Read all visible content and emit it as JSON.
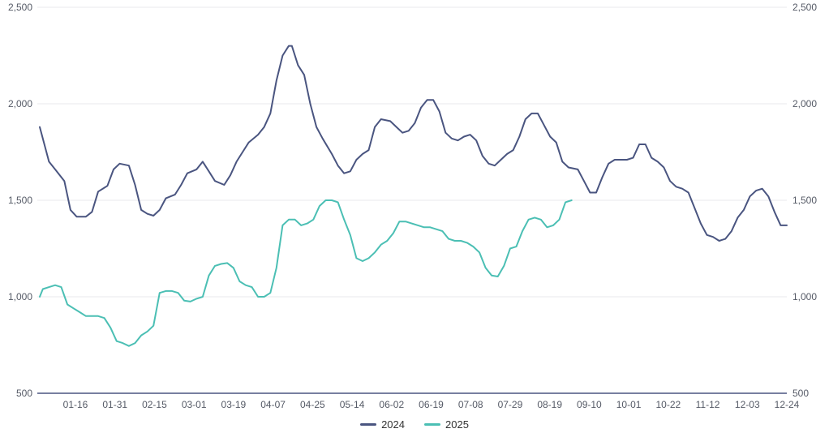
{
  "chart_data": {
    "type": "line",
    "title": "",
    "xlabel": "",
    "ylabel": "",
    "ylim": [
      500,
      2500
    ],
    "y_ticks": [
      500,
      1000,
      1500,
      2000,
      2500
    ],
    "y_tick_labels": [
      "500",
      "1,000",
      "1,500",
      "2,000",
      "2,500"
    ],
    "x_tick_labels": [
      "01-16",
      "01-31",
      "02-15",
      "03-01",
      "03-19",
      "04-07",
      "04-25",
      "05-14",
      "06-02",
      "06-19",
      "07-08",
      "07-29",
      "08-19",
      "09-10",
      "10-01",
      "10-22",
      "11-12",
      "12-03",
      "12-24"
    ],
    "x_axis": "trading days of the year (index 0–243)",
    "grid": true,
    "legend_position": "bottom",
    "series": [
      {
        "name": "2024",
        "color": "#4a5580",
        "points": [
          [
            0,
            1880
          ],
          [
            3,
            1700
          ],
          [
            5,
            1660
          ],
          [
            8,
            1600
          ],
          [
            10,
            1450
          ],
          [
            12,
            1415
          ],
          [
            15,
            1415
          ],
          [
            17,
            1440
          ],
          [
            19,
            1545
          ],
          [
            22,
            1575
          ],
          [
            24,
            1660
          ],
          [
            26,
            1690
          ],
          [
            29,
            1680
          ],
          [
            31,
            1580
          ],
          [
            33,
            1450
          ],
          [
            35,
            1430
          ],
          [
            37,
            1420
          ],
          [
            39,
            1450
          ],
          [
            41,
            1510
          ],
          [
            44,
            1530
          ],
          [
            46,
            1580
          ],
          [
            48,
            1640
          ],
          [
            51,
            1660
          ],
          [
            53,
            1700
          ],
          [
            55,
            1650
          ],
          [
            57,
            1600
          ],
          [
            60,
            1580
          ],
          [
            62,
            1630
          ],
          [
            64,
            1700
          ],
          [
            66,
            1750
          ],
          [
            68,
            1800
          ],
          [
            71,
            1840
          ],
          [
            73,
            1880
          ],
          [
            75,
            1950
          ],
          [
            77,
            2120
          ],
          [
            79,
            2250
          ],
          [
            81,
            2300
          ],
          [
            82,
            2300
          ],
          [
            84,
            2200
          ],
          [
            86,
            2150
          ],
          [
            88,
            2000
          ],
          [
            90,
            1880
          ],
          [
            92,
            1820
          ],
          [
            95,
            1740
          ],
          [
            97,
            1680
          ],
          [
            99,
            1640
          ],
          [
            101,
            1650
          ],
          [
            103,
            1710
          ],
          [
            105,
            1740
          ],
          [
            107,
            1760
          ],
          [
            109,
            1880
          ],
          [
            111,
            1920
          ],
          [
            114,
            1910
          ],
          [
            116,
            1880
          ],
          [
            118,
            1850
          ],
          [
            120,
            1860
          ],
          [
            122,
            1900
          ],
          [
            124,
            1980
          ],
          [
            126,
            2020
          ],
          [
            128,
            2020
          ],
          [
            130,
            1960
          ],
          [
            132,
            1850
          ],
          [
            134,
            1820
          ],
          [
            136,
            1810
          ],
          [
            138,
            1830
          ],
          [
            140,
            1840
          ],
          [
            142,
            1810
          ],
          [
            144,
            1730
          ],
          [
            146,
            1690
          ],
          [
            148,
            1680
          ],
          [
            150,
            1710
          ],
          [
            152,
            1740
          ],
          [
            154,
            1760
          ],
          [
            156,
            1830
          ],
          [
            158,
            1920
          ],
          [
            160,
            1950
          ],
          [
            162,
            1950
          ],
          [
            164,
            1890
          ],
          [
            166,
            1830
          ],
          [
            168,
            1800
          ],
          [
            170,
            1700
          ],
          [
            172,
            1670
          ],
          [
            175,
            1660
          ],
          [
            177,
            1600
          ],
          [
            179,
            1540
          ],
          [
            181,
            1540
          ],
          [
            183,
            1620
          ],
          [
            185,
            1690
          ],
          [
            187,
            1710
          ],
          [
            189,
            1710
          ],
          [
            191,
            1710
          ],
          [
            193,
            1720
          ],
          [
            195,
            1790
          ],
          [
            197,
            1790
          ],
          [
            199,
            1720
          ],
          [
            201,
            1700
          ],
          [
            203,
            1670
          ],
          [
            205,
            1600
          ],
          [
            207,
            1570
          ],
          [
            209,
            1560
          ],
          [
            211,
            1540
          ],
          [
            213,
            1460
          ],
          [
            215,
            1380
          ],
          [
            217,
            1320
          ],
          [
            219,
            1310
          ],
          [
            221,
            1290
          ],
          [
            223,
            1300
          ],
          [
            225,
            1340
          ],
          [
            227,
            1410
          ],
          [
            229,
            1450
          ],
          [
            231,
            1520
          ],
          [
            233,
            1550
          ],
          [
            235,
            1560
          ],
          [
            237,
            1520
          ],
          [
            239,
            1440
          ],
          [
            241,
            1370
          ],
          [
            243,
            1370
          ]
        ]
      },
      {
        "name": "2025",
        "color": "#4bbfb4",
        "points": [
          [
            0,
            1000
          ],
          [
            1,
            1040
          ],
          [
            3,
            1050
          ],
          [
            5,
            1060
          ],
          [
            7,
            1050
          ],
          [
            9,
            960
          ],
          [
            11,
            940
          ],
          [
            13,
            920
          ],
          [
            15,
            900
          ],
          [
            17,
            900
          ],
          [
            19,
            900
          ],
          [
            21,
            890
          ],
          [
            23,
            840
          ],
          [
            25,
            770
          ],
          [
            27,
            760
          ],
          [
            29,
            745
          ],
          [
            31,
            760
          ],
          [
            33,
            800
          ],
          [
            35,
            820
          ],
          [
            37,
            850
          ],
          [
            39,
            1020
          ],
          [
            41,
            1030
          ],
          [
            43,
            1030
          ],
          [
            45,
            1020
          ],
          [
            47,
            980
          ],
          [
            49,
            975
          ],
          [
            51,
            990
          ],
          [
            53,
            1000
          ],
          [
            55,
            1110
          ],
          [
            57,
            1160
          ],
          [
            59,
            1170
          ],
          [
            61,
            1175
          ],
          [
            63,
            1150
          ],
          [
            65,
            1080
          ],
          [
            67,
            1060
          ],
          [
            69,
            1050
          ],
          [
            71,
            1000
          ],
          [
            73,
            1000
          ],
          [
            75,
            1020
          ],
          [
            77,
            1150
          ],
          [
            79,
            1370
          ],
          [
            81,
            1400
          ],
          [
            83,
            1400
          ],
          [
            85,
            1370
          ],
          [
            87,
            1380
          ],
          [
            89,
            1400
          ],
          [
            91,
            1470
          ],
          [
            93,
            1500
          ],
          [
            95,
            1500
          ],
          [
            97,
            1490
          ],
          [
            99,
            1400
          ],
          [
            101,
            1320
          ],
          [
            103,
            1200
          ],
          [
            105,
            1185
          ],
          [
            107,
            1200
          ],
          [
            109,
            1230
          ],
          [
            111,
            1270
          ],
          [
            113,
            1290
          ],
          [
            115,
            1330
          ],
          [
            117,
            1390
          ],
          [
            119,
            1390
          ],
          [
            121,
            1380
          ],
          [
            123,
            1370
          ],
          [
            125,
            1360
          ],
          [
            127,
            1360
          ],
          [
            129,
            1350
          ],
          [
            131,
            1340
          ],
          [
            133,
            1300
          ],
          [
            135,
            1290
          ],
          [
            137,
            1290
          ],
          [
            139,
            1280
          ],
          [
            141,
            1260
          ],
          [
            143,
            1230
          ],
          [
            145,
            1150
          ],
          [
            147,
            1110
          ],
          [
            149,
            1105
          ],
          [
            151,
            1160
          ],
          [
            153,
            1250
          ],
          [
            155,
            1260
          ],
          [
            157,
            1340
          ],
          [
            159,
            1400
          ],
          [
            161,
            1410
          ],
          [
            163,
            1400
          ],
          [
            165,
            1360
          ],
          [
            167,
            1370
          ],
          [
            169,
            1400
          ],
          [
            171,
            1490
          ],
          [
            173,
            1500
          ]
        ]
      }
    ]
  }
}
